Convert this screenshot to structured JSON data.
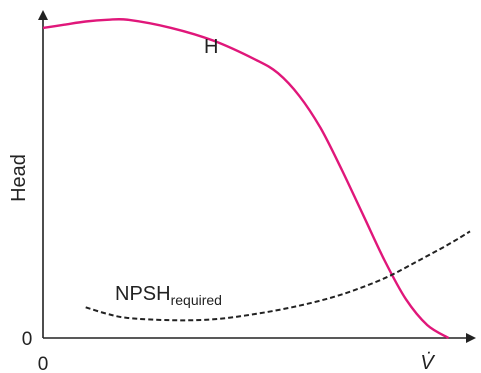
{
  "chart_data": {
    "type": "line",
    "ylabel": "Head",
    "xlabel": "V̇",
    "x_origin_label": "0",
    "y_origin_label": "0",
    "xlim": [
      0,
      1
    ],
    "ylim": [
      0,
      1
    ],
    "grid": false,
    "legend": "none",
    "series": [
      {
        "name": "H",
        "color": "#e0177a",
        "style": "solid",
        "x": [
          0.0,
          0.05,
          0.1,
          0.15,
          0.2,
          0.3,
          0.4,
          0.5,
          0.55,
          0.6,
          0.65,
          0.7,
          0.75,
          0.8,
          0.85,
          0.9,
          0.95
        ],
        "y": [
          0.96,
          0.97,
          0.98,
          0.985,
          0.985,
          0.96,
          0.92,
          0.86,
          0.82,
          0.75,
          0.65,
          0.52,
          0.38,
          0.24,
          0.12,
          0.04,
          0.0
        ]
      },
      {
        "name": "NPSH",
        "name_subscript": "required",
        "color": "#222222",
        "style": "dashed",
        "x": [
          0.1,
          0.15,
          0.2,
          0.3,
          0.4,
          0.5,
          0.6,
          0.7,
          0.8,
          0.88,
          0.95,
          1.0
        ],
        "y": [
          0.095,
          0.075,
          0.062,
          0.055,
          0.058,
          0.075,
          0.1,
          0.135,
          0.185,
          0.24,
          0.29,
          0.33
        ]
      }
    ]
  }
}
